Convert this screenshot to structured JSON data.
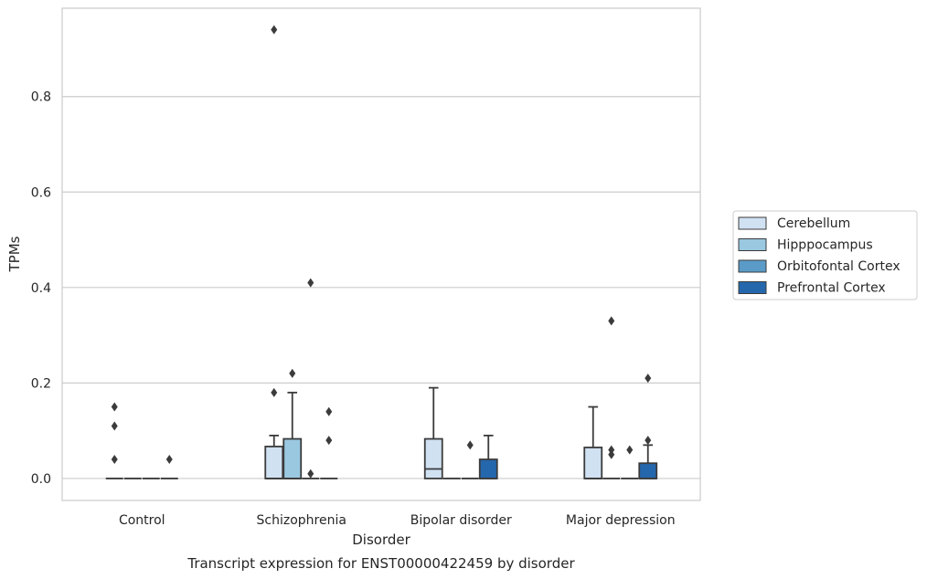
{
  "chart_data": {
    "type": "box",
    "title": "Transcript expression for ENST00000422459 by disorder",
    "xlabel": "Disorder",
    "ylabel": "TPMs",
    "categories": [
      "Control",
      "Schizophrenia",
      "Bipolar disorder",
      "Major depression"
    ],
    "ylim": [
      -0.046,
      0.985
    ],
    "yticks": [
      "0.0",
      "0.2",
      "0.4",
      "0.6",
      "0.8"
    ],
    "ytick_values": [
      0.0,
      0.2,
      0.4,
      0.6,
      0.8
    ],
    "grid": "horizontal",
    "legend_position": "right",
    "series": [
      {
        "name": "Cerebellum",
        "color": "#d0e1f2",
        "boxes": [
          {
            "q1": 0,
            "median": 0,
            "q3": 0,
            "whisker_low": 0,
            "whisker_high": 0,
            "outliers": [
              0.04,
              0.11,
              0.15
            ]
          },
          {
            "q1": 0,
            "median": 0,
            "q3": 0.067,
            "whisker_low": 0,
            "whisker_high": 0.09,
            "outliers": [
              0.18,
              0.94
            ]
          },
          {
            "q1": 0,
            "median": 0.02,
            "q3": 0.083,
            "whisker_low": 0,
            "whisker_high": 0.19,
            "outliers": []
          },
          {
            "q1": 0,
            "median": 0,
            "q3": 0.065,
            "whisker_low": 0,
            "whisker_high": 0.15,
            "outliers": []
          }
        ]
      },
      {
        "name": "Hipppocampus",
        "color": "#9ac8e0",
        "boxes": [
          {
            "q1": 0,
            "median": 0,
            "q3": 0,
            "whisker_low": 0,
            "whisker_high": 0,
            "outliers": []
          },
          {
            "q1": 0,
            "median": 0,
            "q3": 0.083,
            "whisker_low": 0,
            "whisker_high": 0.18,
            "outliers": [
              0.22
            ]
          },
          {
            "q1": 0,
            "median": 0,
            "q3": 0,
            "whisker_low": 0,
            "whisker_high": 0,
            "outliers": []
          },
          {
            "q1": 0,
            "median": 0,
            "q3": 0,
            "whisker_low": 0,
            "whisker_high": 0,
            "outliers": [
              0.05,
              0.06,
              0.33
            ]
          }
        ]
      },
      {
        "name": "Orbitofontal Cortex",
        "color": "#5a9bc8",
        "boxes": [
          {
            "q1": 0,
            "median": 0,
            "q3": 0,
            "whisker_low": 0,
            "whisker_high": 0,
            "outliers": []
          },
          {
            "q1": 0,
            "median": 0,
            "q3": 0,
            "whisker_low": 0,
            "whisker_high": 0,
            "outliers": [
              0.01,
              0.41
            ]
          },
          {
            "q1": 0,
            "median": 0,
            "q3": 0,
            "whisker_low": 0,
            "whisker_high": 0,
            "outliers": [
              0.07
            ]
          },
          {
            "q1": 0,
            "median": 0,
            "q3": 0,
            "whisker_low": 0,
            "whisker_high": 0,
            "outliers": [
              0.06
            ]
          }
        ]
      },
      {
        "name": "Prefrontal Cortex",
        "color": "#2567ad",
        "boxes": [
          {
            "q1": 0,
            "median": 0,
            "q3": 0,
            "whisker_low": 0,
            "whisker_high": 0,
            "outliers": [
              0.04
            ]
          },
          {
            "q1": 0,
            "median": 0,
            "q3": 0,
            "whisker_low": 0,
            "whisker_high": 0,
            "outliers": [
              0.08,
              0.14
            ]
          },
          {
            "q1": 0,
            "median": 0,
            "q3": 0.04,
            "whisker_low": 0,
            "whisker_high": 0.09,
            "outliers": []
          },
          {
            "q1": 0,
            "median": 0,
            "q3": 0.032,
            "whisker_low": 0,
            "whisker_high": 0.07,
            "outliers": [
              0.08,
              0.21
            ]
          }
        ]
      }
    ]
  }
}
